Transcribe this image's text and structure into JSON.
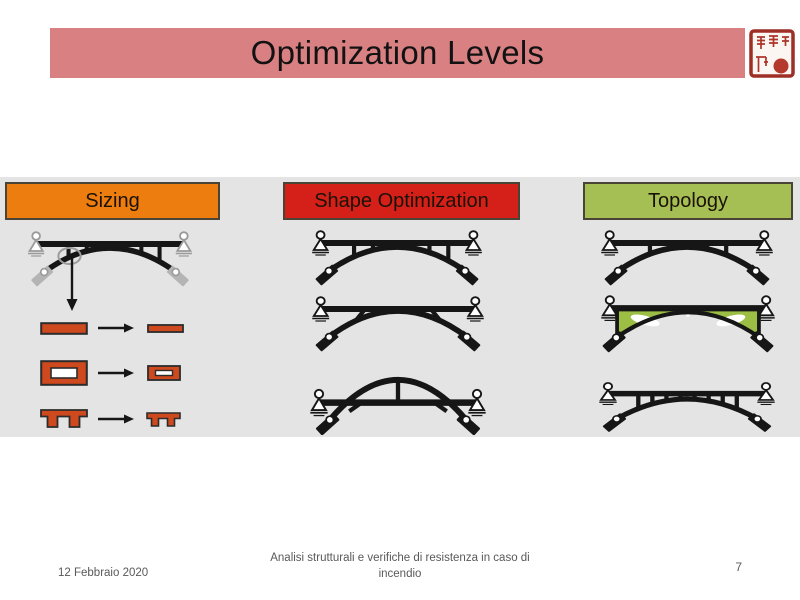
{
  "slide": {
    "title": "Optimization Levels",
    "title_bar_color": "#d98082"
  },
  "columns": [
    {
      "label": "Sizing",
      "color": "#ed7d0f"
    },
    {
      "label": "Shape Optimization",
      "color": "#d42018"
    },
    {
      "label": "Topology",
      "color": "#a6bf55"
    }
  ],
  "footer": {
    "date": "12 Febbraio 2020",
    "subtitle": "Analisi strutturali e verifiche di resistenza in caso di incendio",
    "page_number": "7"
  },
  "colors": {
    "panel_bg": "#e4e4e4",
    "section_fill": "#ce491d",
    "section_stroke": "#2c2c2c",
    "bridge_black": "#161616",
    "bridge_gray_support": "#b4b4b4",
    "topology_green": "#9cbe45",
    "seal_red": "#a5352b",
    "footer_text": "#595959"
  },
  "icons": {
    "seal": "university-seal-stamp-icon",
    "bridge": "arch-bridge-diagram-icon",
    "pin_support": "pin-support-icon",
    "roller_support": "roller-support-pad-icon",
    "right_arrow": "right-arrow-icon",
    "down_arrow": "down-arrow-icon",
    "highlight": "member-highlight-ellipse-icon"
  }
}
